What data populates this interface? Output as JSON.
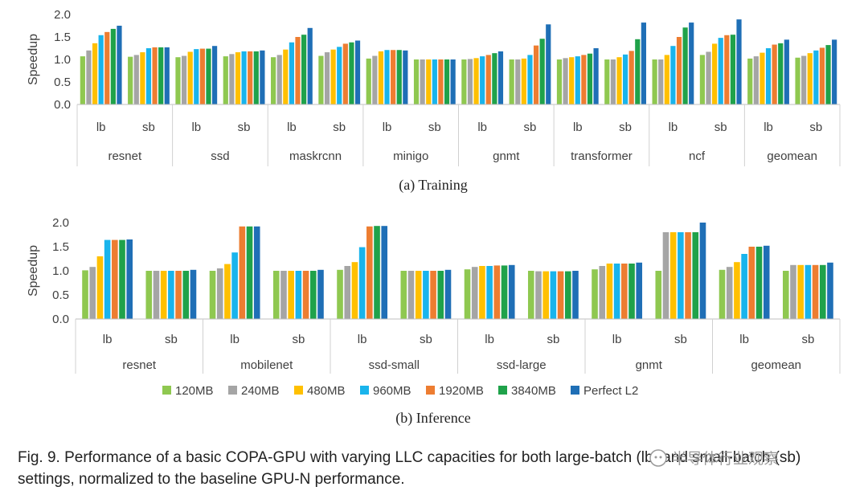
{
  "colors": [
    "#8fc850",
    "#a5a5a5",
    "#ffc000",
    "#19b4ec",
    "#ed7d31",
    "#1fa24a",
    "#1f6fb6"
  ],
  "legend": [
    "120MB",
    "240MB",
    "480MB",
    "960MB",
    "1920MB",
    "3840MB",
    "Perfect L2"
  ],
  "chart_data": [
    {
      "type": "bar",
      "subtitle": "(a) Training",
      "ylabel": "Speedup",
      "ylim": [
        0,
        2.0
      ],
      "yticks": [
        "0.0",
        "0.5",
        "1.0",
        "1.5",
        "2.0"
      ],
      "grid": false,
      "groups": [
        "resnet",
        "ssd",
        "maskrcnn",
        "minigo",
        "gnmt",
        "transformer",
        "ncf",
        "geomean"
      ],
      "categories": [
        "lb",
        "sb"
      ],
      "series": [
        {
          "name": "120MB",
          "values": [
            [
              1.07,
              1.06
            ],
            [
              1.05,
              1.07
            ],
            [
              1.05,
              1.08
            ],
            [
              1.02,
              1.0
            ],
            [
              1.0,
              1.0
            ],
            [
              1.0,
              1.0
            ],
            [
              1.0,
              1.1
            ],
            [
              1.02,
              1.04
            ]
          ]
        },
        {
          "name": "240MB",
          "values": [
            [
              1.2,
              1.1
            ],
            [
              1.08,
              1.12
            ],
            [
              1.1,
              1.16
            ],
            [
              1.08,
              1.0
            ],
            [
              1.01,
              1.0
            ],
            [
              1.03,
              1.0
            ],
            [
              1.0,
              1.17
            ],
            [
              1.07,
              1.08
            ]
          ]
        },
        {
          "name": "480MB",
          "values": [
            [
              1.36,
              1.16
            ],
            [
              1.17,
              1.16
            ],
            [
              1.22,
              1.22
            ],
            [
              1.18,
              1.0
            ],
            [
              1.03,
              1.02
            ],
            [
              1.05,
              1.05
            ],
            [
              1.1,
              1.35
            ],
            [
              1.15,
              1.14
            ]
          ]
        },
        {
          "name": "960MB",
          "values": [
            [
              1.54,
              1.25
            ],
            [
              1.23,
              1.18
            ],
            [
              1.38,
              1.28
            ],
            [
              1.21,
              1.0
            ],
            [
              1.07,
              1.1
            ],
            [
              1.07,
              1.11
            ],
            [
              1.3,
              1.48
            ],
            [
              1.25,
              1.2
            ]
          ]
        },
        {
          "name": "1920MB",
          "values": [
            [
              1.61,
              1.27
            ],
            [
              1.24,
              1.18
            ],
            [
              1.5,
              1.35
            ],
            [
              1.21,
              1.0
            ],
            [
              1.1,
              1.31
            ],
            [
              1.1,
              1.19
            ],
            [
              1.5,
              1.54
            ],
            [
              1.33,
              1.26
            ]
          ]
        },
        {
          "name": "3840MB",
          "values": [
            [
              1.68,
              1.27
            ],
            [
              1.24,
              1.18
            ],
            [
              1.55,
              1.38
            ],
            [
              1.21,
              1.0
            ],
            [
              1.14,
              1.46
            ],
            [
              1.13,
              1.45
            ],
            [
              1.71,
              1.55
            ],
            [
              1.36,
              1.32
            ]
          ]
        },
        {
          "name": "Perfect L2",
          "values": [
            [
              1.75,
              1.27
            ],
            [
              1.3,
              1.2
            ],
            [
              1.7,
              1.42
            ],
            [
              1.2,
              1.0
            ],
            [
              1.18,
              1.78
            ],
            [
              1.25,
              1.82
            ],
            [
              1.82,
              1.89
            ],
            [
              1.44,
              1.44
            ]
          ]
        }
      ]
    },
    {
      "type": "bar",
      "subtitle": "(b) Inference",
      "ylabel": "Speedup",
      "ylim": [
        0,
        2.0
      ],
      "yticks": [
        "0.0",
        "0.5",
        "1.0",
        "1.5",
        "2.0"
      ],
      "grid": false,
      "groups": [
        "resnet",
        "mobilenet",
        "ssd-small",
        "ssd-large",
        "gnmt",
        "geomean"
      ],
      "categories": [
        "lb",
        "sb"
      ],
      "series": [
        {
          "name": "120MB",
          "values": [
            [
              1.01,
              1.0
            ],
            [
              1.0,
              1.0
            ],
            [
              1.02,
              1.0
            ],
            [
              1.03,
              1.0
            ],
            [
              1.03,
              1.0
            ],
            [
              1.02,
              1.0
            ]
          ]
        },
        {
          "name": "240MB",
          "values": [
            [
              1.08,
              1.0
            ],
            [
              1.05,
              1.0
            ],
            [
              1.1,
              1.0
            ],
            [
              1.08,
              0.99
            ],
            [
              1.1,
              1.8
            ],
            [
              1.08,
              1.12
            ]
          ]
        },
        {
          "name": "480MB",
          "values": [
            [
              1.3,
              1.0
            ],
            [
              1.14,
              1.0
            ],
            [
              1.18,
              1.0
            ],
            [
              1.1,
              0.99
            ],
            [
              1.15,
              1.8
            ],
            [
              1.18,
              1.12
            ]
          ]
        },
        {
          "name": "960MB",
          "values": [
            [
              1.64,
              1.0
            ],
            [
              1.38,
              1.0
            ],
            [
              1.49,
              1.0
            ],
            [
              1.1,
              0.99
            ],
            [
              1.15,
              1.8
            ],
            [
              1.35,
              1.12
            ]
          ]
        },
        {
          "name": "1920MB",
          "values": [
            [
              1.64,
              1.0
            ],
            [
              1.92,
              1.0
            ],
            [
              1.92,
              1.0
            ],
            [
              1.11,
              0.99
            ],
            [
              1.15,
              1.8
            ],
            [
              1.5,
              1.12
            ]
          ]
        },
        {
          "name": "3840MB",
          "values": [
            [
              1.64,
              1.0
            ],
            [
              1.92,
              1.0
            ],
            [
              1.93,
              1.0
            ],
            [
              1.11,
              0.99
            ],
            [
              1.15,
              1.8
            ],
            [
              1.5,
              1.12
            ]
          ]
        },
        {
          "name": "Perfect L2",
          "values": [
            [
              1.65,
              1.02
            ],
            [
              1.92,
              1.02
            ],
            [
              1.93,
              1.02
            ],
            [
              1.12,
              1.0
            ],
            [
              1.17,
              2.0
            ],
            [
              1.52,
              1.17
            ]
          ]
        }
      ]
    }
  ],
  "caption": "Fig. 9.  Performance of a basic COPA-GPU with varying LLC capacities for both large-batch (lb) and small-batch (sb) settings, normalized to the baseline GPU-N performance.",
  "watermark": "半导体行业观察"
}
